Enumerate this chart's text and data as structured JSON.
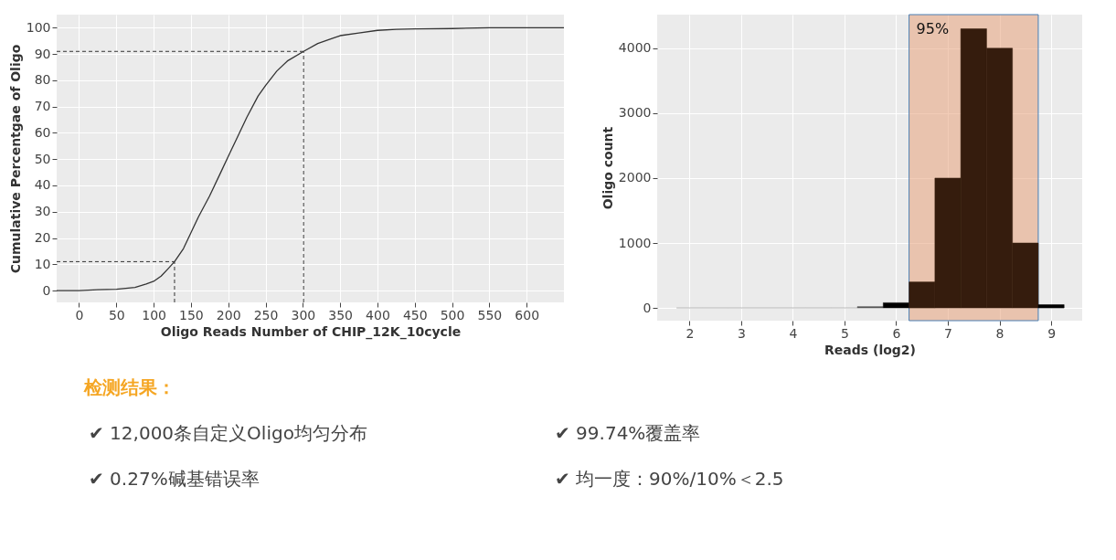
{
  "chart_data": [
    {
      "type": "line",
      "xlabel": "Oligo Reads Number of CHIP_12K_10cycle",
      "ylabel": "Cumulative Percentgae of Oligo",
      "x": [
        -30,
        0,
        25,
        50,
        75,
        90,
        100,
        110,
        120,
        128,
        140,
        150,
        160,
        175,
        190,
        200,
        215,
        225,
        240,
        250,
        265,
        280,
        301,
        320,
        340,
        350,
        375,
        400,
        425,
        450,
        500,
        550,
        650
      ],
      "series": [
        {
          "color": "#333333",
          "values": [
            0,
            0,
            0.3,
            0.5,
            1.2,
            2.5,
            3.5,
            5.5,
            8.5,
            11,
            16,
            22,
            28,
            36,
            45,
            51,
            60,
            66,
            74,
            78,
            83.5,
            87.5,
            91,
            94,
            96,
            97,
            98,
            99,
            99.4,
            99.6,
            99.7,
            100,
            100
          ]
        }
      ],
      "xlim": [
        -30,
        650
      ],
      "xticks": [
        0,
        50,
        100,
        150,
        200,
        250,
        300,
        350,
        400,
        450,
        500,
        550,
        600
      ],
      "ylim": [
        -4.5,
        105
      ],
      "yticks": [
        0,
        10,
        20,
        30,
        40,
        50,
        60,
        70,
        80,
        90,
        100
      ],
      "ref_lines": [
        {
          "axis": "y",
          "value": 11,
          "color": "#333333",
          "line_style": "dashed"
        },
        {
          "axis": "x",
          "value": 128,
          "color": "#333333",
          "line_style": "dashed"
        },
        {
          "axis": "y",
          "value": 91,
          "color": "#333333",
          "line_style": "dashed"
        },
        {
          "axis": "x",
          "value": 301,
          "color": "#333333",
          "line_style": "dashed"
        }
      ],
      "grid": true,
      "marker": "none",
      "line_style": "solid"
    },
    {
      "type": "histogram",
      "xlabel": "Reads (log2)",
      "ylabel": "Oligo count",
      "bins": [
        1.75,
        2.25,
        2.75,
        3.25,
        3.75,
        4.25,
        4.75,
        5.25,
        5.75,
        6.25,
        6.75,
        7.25,
        7.75,
        8.25,
        8.75,
        9.25
      ],
      "values": [
        0,
        0,
        0,
        0,
        0,
        0,
        0,
        20,
        80,
        400,
        2000,
        4300,
        4000,
        1000,
        50
      ],
      "colors": [
        "#aaaaaa",
        "#aaaaaa",
        "#aaaaaa",
        "#aaaaaa",
        "#aaaaaa",
        "#aaaaaa",
        "#aaaaaa",
        "#555555",
        "#000000",
        "#351c0d",
        "#351c0d",
        "#351c0d",
        "#351c0d",
        "#351c0d",
        "#000000"
      ],
      "xlim": [
        1.375,
        9.6
      ],
      "xticks": [
        2,
        3,
        4,
        5,
        6,
        7,
        8,
        9
      ],
      "ylim": [
        -196,
        4518
      ],
      "yticks": [
        0,
        1000,
        2000,
        3000,
        4000
      ],
      "bands": [
        {
          "axis": "x",
          "from": 6.25,
          "to": 8.75,
          "label": "95%",
          "color": "#e8a27c"
        }
      ],
      "grid": true
    },
    {
      "type": "other",
      "title": "检测结果：",
      "annotations": [
        "✔ 12,000条自定义Oligo均匀分布",
        "✔  99.74%覆盖率",
        "✔ 0.27%碱基错误率",
        "✔  均一度：90%/10%＜2.5"
      ]
    }
  ]
}
